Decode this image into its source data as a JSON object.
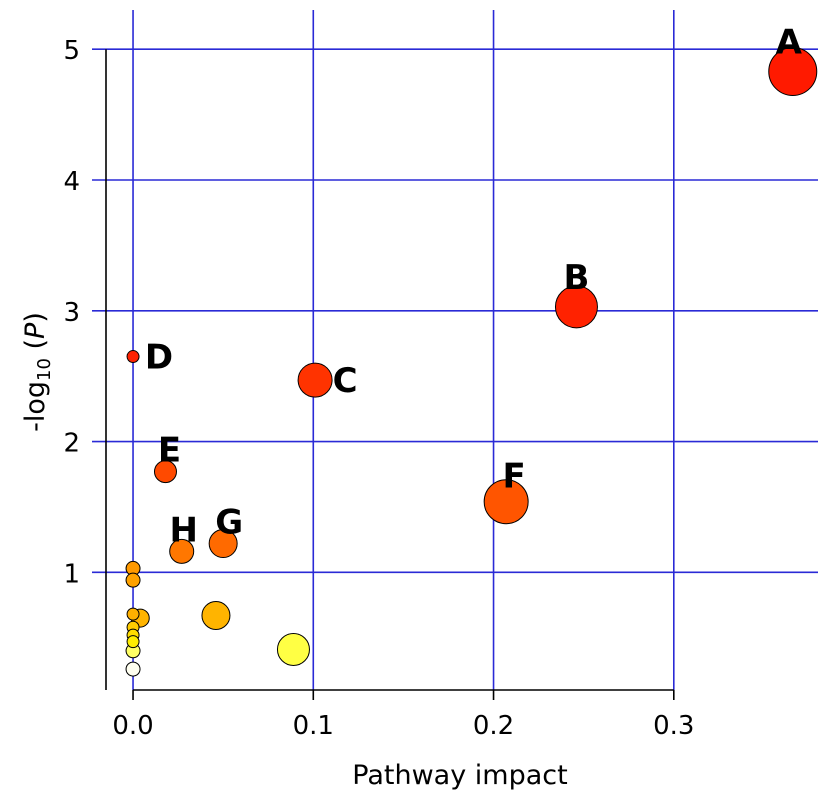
{
  "chart_data": {
    "type": "scatter",
    "title": "",
    "xlabel": "Pathway impact",
    "ylabel_prefix": "-log",
    "ylabel_sub": "10",
    "ylabel_suffix_open": " (",
    "ylabel_var": "P",
    "ylabel_suffix_close": ")",
    "xlim": [
      -0.015,
      0.38
    ],
    "ylim": [
      0.1,
      5.3
    ],
    "x_ticks": [
      0.0,
      0.1,
      0.2,
      0.3
    ],
    "x_tick_labels": [
      "0.0",
      "0.1",
      "0.2",
      "0.3"
    ],
    "y_ticks": [
      1,
      2,
      3,
      4,
      5
    ],
    "y_tick_labels": [
      "1",
      "2",
      "3",
      "4",
      "5"
    ],
    "grid": true,
    "grid_color": "#2a2ad6",
    "points": [
      {
        "x": 0.366,
        "y": 4.83,
        "r": 24,
        "color": "#ff1a00",
        "label": "A"
      },
      {
        "x": 0.246,
        "y": 3.03,
        "r": 21,
        "color": "#ff2200",
        "label": "B"
      },
      {
        "x": 0.101,
        "y": 2.47,
        "r": 17,
        "color": "#ff3300",
        "label": "C"
      },
      {
        "x": 0.0,
        "y": 2.65,
        "r": 6,
        "color": "#ff2200",
        "label": "D"
      },
      {
        "x": 0.018,
        "y": 1.77,
        "r": 11,
        "color": "#ff4a00",
        "label": "E"
      },
      {
        "x": 0.207,
        "y": 1.54,
        "r": 22,
        "color": "#ff5500",
        "label": "F"
      },
      {
        "x": 0.05,
        "y": 1.22,
        "r": 14,
        "color": "#ff6a00",
        "label": "G"
      },
      {
        "x": 0.027,
        "y": 1.16,
        "r": 12,
        "color": "#ff7700",
        "label": "H"
      },
      {
        "x": 0.0,
        "y": 1.03,
        "r": 7,
        "color": "#ff9900",
        "label": ""
      },
      {
        "x": 0.0,
        "y": 0.94,
        "r": 7,
        "color": "#ffa200",
        "label": ""
      },
      {
        "x": 0.0,
        "y": 0.68,
        "r": 6,
        "color": "#ffb000",
        "label": ""
      },
      {
        "x": 0.004,
        "y": 0.65,
        "r": 9,
        "color": "#ffb400",
        "label": ""
      },
      {
        "x": 0.046,
        "y": 0.67,
        "r": 14,
        "color": "#ffb400",
        "label": ""
      },
      {
        "x": 0.0,
        "y": 0.58,
        "r": 6,
        "color": "#ffcc00",
        "label": ""
      },
      {
        "x": 0.0,
        "y": 0.52,
        "r": 6,
        "color": "#ffdd00",
        "label": ""
      },
      {
        "x": 0.0,
        "y": 0.47,
        "r": 6,
        "color": "#ffee00",
        "label": ""
      },
      {
        "x": 0.0,
        "y": 0.4,
        "r": 7,
        "color": "#ffff66",
        "label": ""
      },
      {
        "x": 0.089,
        "y": 0.41,
        "r": 16,
        "color": "#ffff44",
        "label": ""
      },
      {
        "x": 0.0,
        "y": 0.26,
        "r": 7,
        "color": "#fffff0",
        "label": ""
      }
    ]
  }
}
